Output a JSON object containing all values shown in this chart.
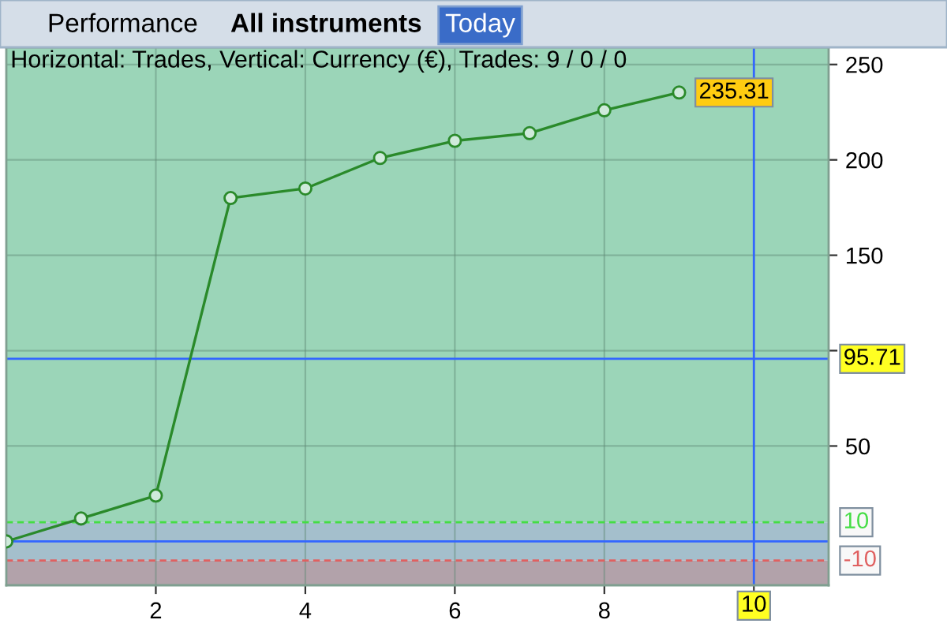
{
  "chart_data": {
    "type": "line",
    "title": "Horizontal: Trades, Vertical: Currency (€), Trades: 9 / 0 / 0",
    "annotations": [
      "Performance",
      "All instruments",
      "Today"
    ],
    "series": [
      {
        "color": "#2a8a2a",
        "x": [
          0,
          1,
          2,
          3,
          4,
          5,
          6,
          7,
          8,
          9
        ],
        "values": [
          0,
          12,
          24,
          180,
          185,
          201,
          210,
          214,
          226,
          235.31
        ],
        "value_labels": [
          null,
          null,
          null,
          null,
          null,
          null,
          null,
          null,
          null,
          "235.31"
        ]
      }
    ],
    "xlim": [
      0,
      11
    ],
    "xticks": [
      2,
      4,
      6,
      8,
      {
        "value": 10,
        "label": null
      }
    ],
    "ylim": [
      -23,
      259
    ],
    "yticks": [
      50,
      {
        "value": 100,
        "label": null
      },
      150,
      200,
      250
    ],
    "ref_lines": [
      {
        "axis": "y",
        "value": 95.71,
        "label": "95.71",
        "color": "#3366ff",
        "line_style": "solid"
      },
      {
        "axis": "y",
        "value": 0,
        "color": "#3366ff",
        "line_style": "solid"
      },
      {
        "axis": "y",
        "value": 10,
        "label": "10",
        "color": "#44dd44",
        "line_style": "dashed"
      },
      {
        "axis": "y",
        "value": -10,
        "label": "-10",
        "color": "#e06060",
        "line_style": "dashed"
      },
      {
        "axis": "x",
        "value": 10,
        "label": "10",
        "color": "#3366ff",
        "line_style": "solid"
      }
    ],
    "bands": [
      {
        "axis": "y",
        "from": 10,
        "to": 259,
        "color": "#9bd5b8"
      },
      {
        "axis": "y",
        "from": -10,
        "to": 10,
        "color": "#a4bfcc"
      },
      {
        "axis": "y",
        "from": -23,
        "to": -10,
        "color": "#b2a2aa"
      }
    ],
    "grid": true,
    "marker": "circle",
    "line_style": "solid"
  }
}
